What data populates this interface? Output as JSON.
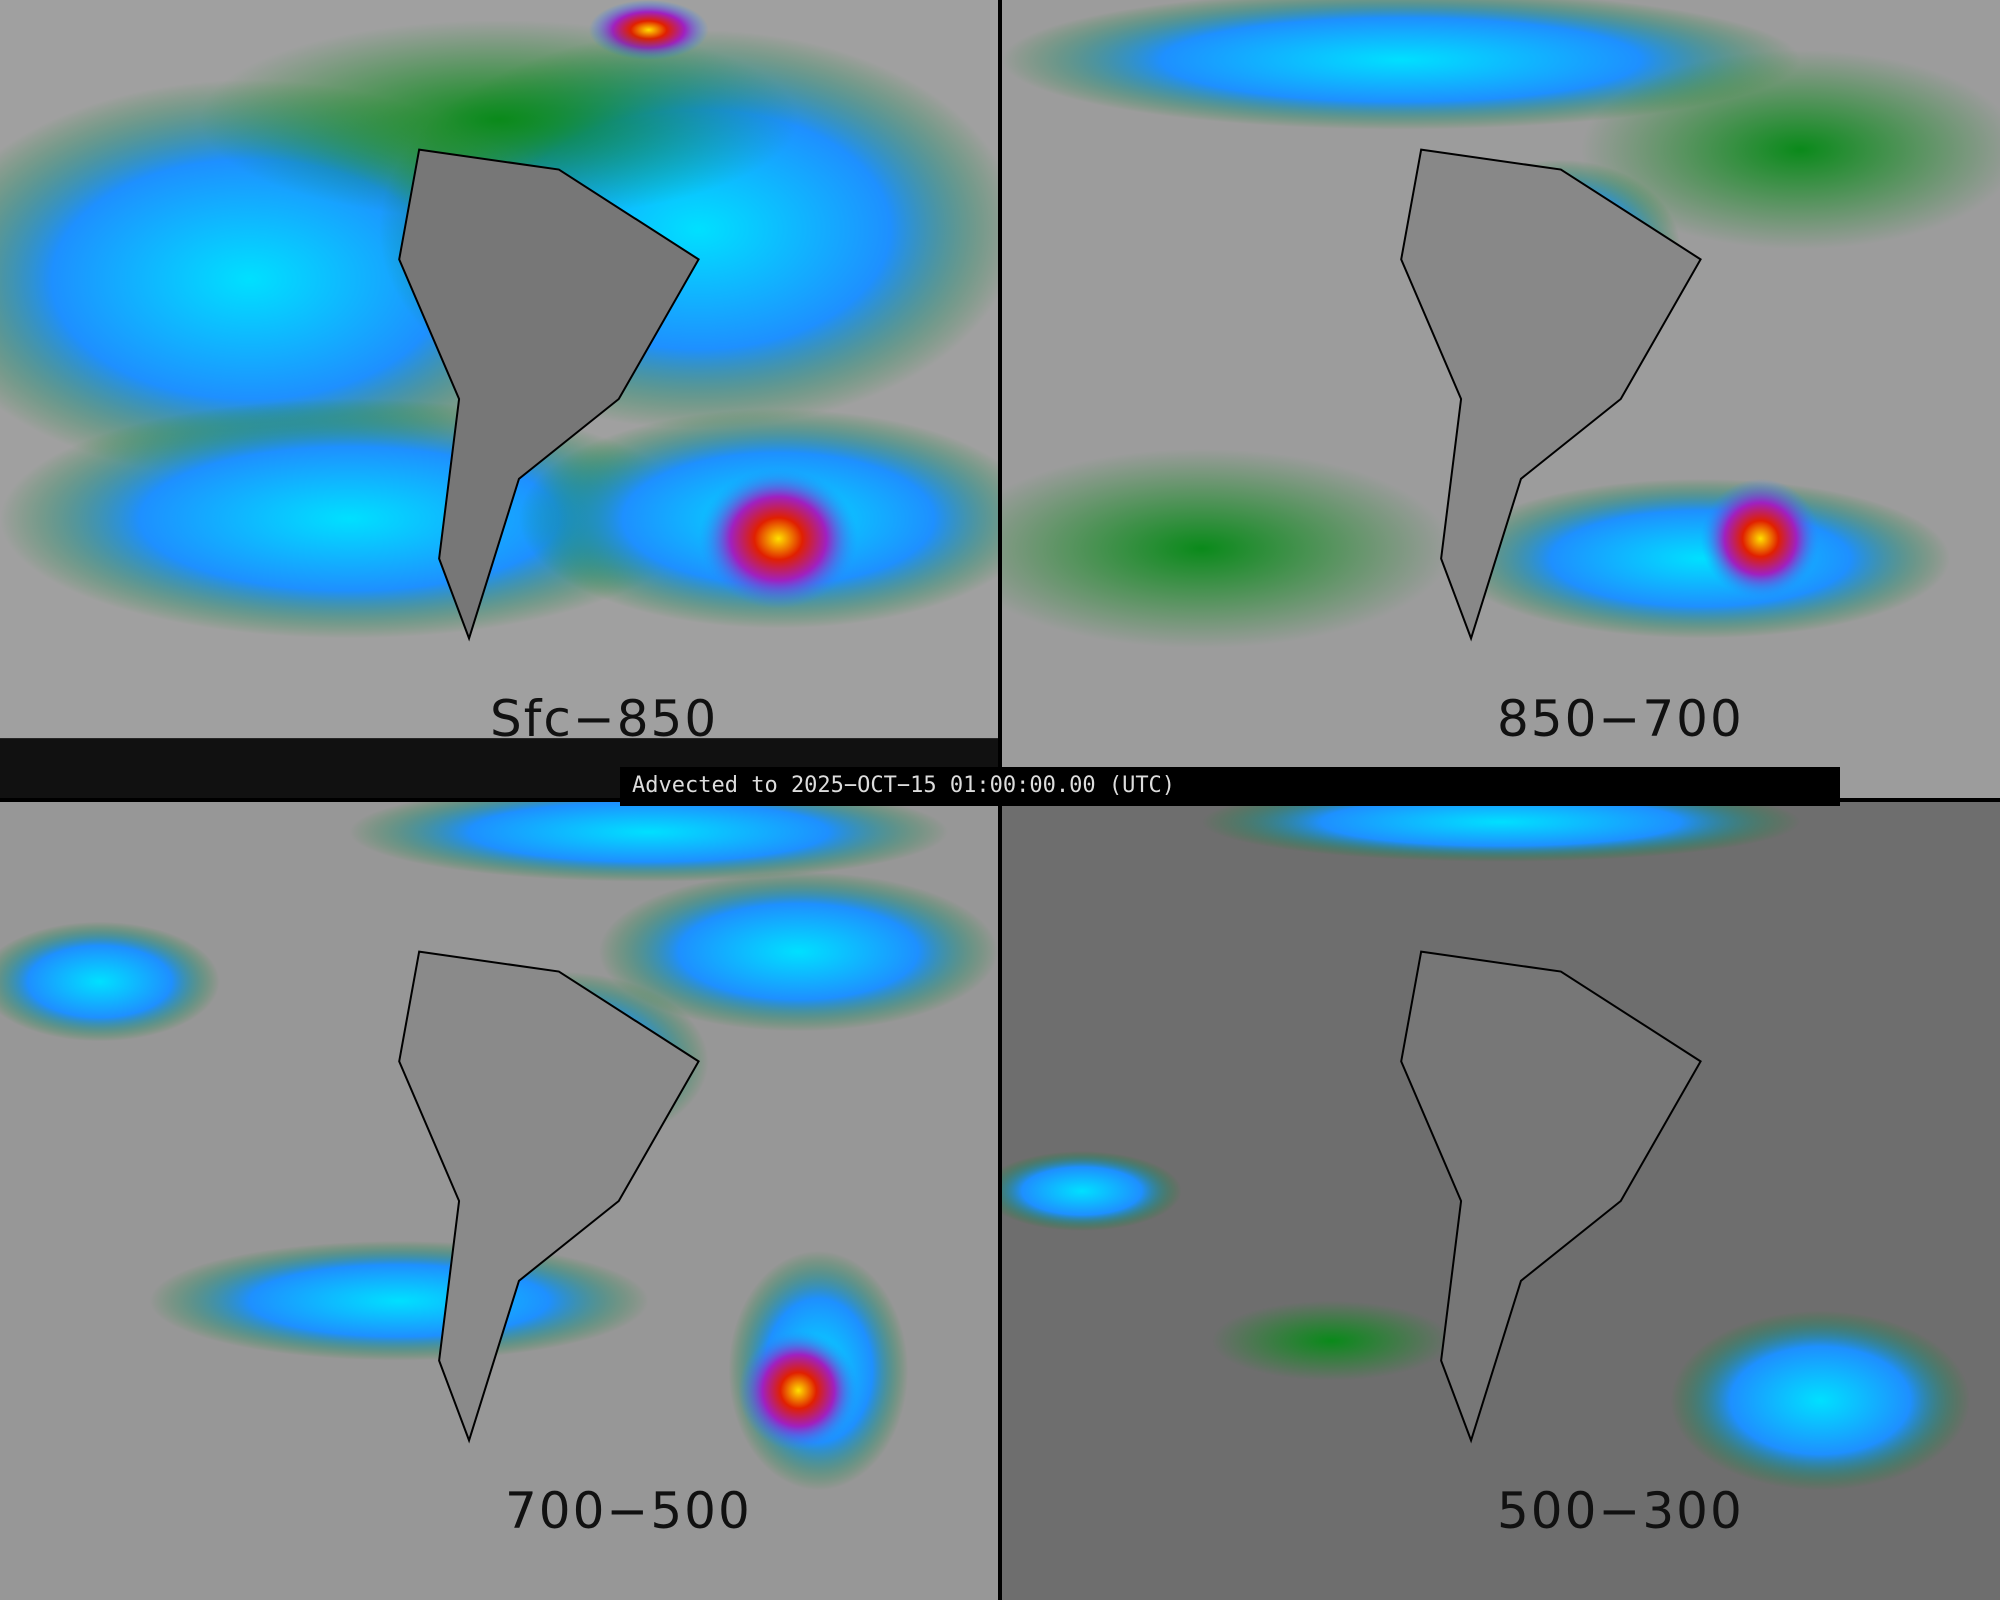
{
  "panels": [
    {
      "label": "Sfc−850"
    },
    {
      "label": "850−700"
    },
    {
      "label": "700−500"
    },
    {
      "label": "500−300"
    }
  ],
  "banner": {
    "text": "Advected to 2025−OCT−15 01:00:00.00 (UTC)"
  },
  "colors": {
    "low": "#8a8a8a",
    "green": "#0a8a1a",
    "blue": "#1e90ff",
    "cyan": "#00e0ff",
    "purple": "#a020c0",
    "red": "#e02000",
    "yellow": "#ffe000",
    "land_outline": "#000000"
  }
}
